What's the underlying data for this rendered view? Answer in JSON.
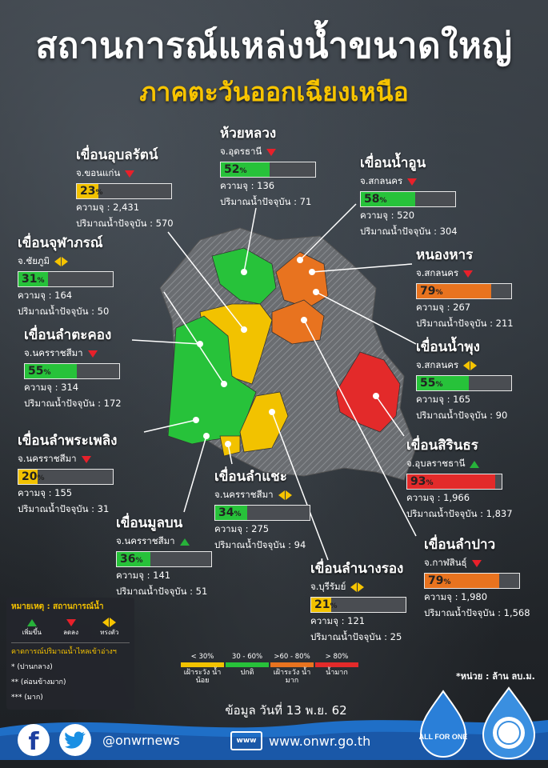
{
  "title": "สถานการณ์แหล่งน้ำขนาดใหญ่",
  "subtitle": "ภาคตะวันออกเฉียงเหนือ",
  "labels": {
    "capacity": "ความจุ :",
    "current": "ปริมาณน้ำปัจจุบัน :"
  },
  "colors": {
    "yellow": "#f2c200",
    "green": "#27c23a",
    "orange": "#e8731f",
    "red": "#e32a2a",
    "gray": "#6a6d71"
  },
  "dams": [
    {
      "name": "เขื่อนอุบลรัตน์",
      "province": "จ.ขอนแก่น",
      "trend": "down",
      "percent": "23",
      "fill": 23,
      "level": "yellow",
      "capacity": "2,431",
      "current": "570"
    },
    {
      "name": "ห้วยหลวง",
      "province": "จ.อุดรธานี",
      "trend": "down",
      "percent": "52",
      "fill": 52,
      "level": "green",
      "capacity": "136",
      "current": "71"
    },
    {
      "name": "เขื่อนน้ำอูน",
      "province": "จ.สกลนคร",
      "trend": "down",
      "percent": "58",
      "fill": 58,
      "level": "green",
      "capacity": "520",
      "current": "304"
    },
    {
      "name": "เขื่อนจุฬาภรณ์",
      "province": "จ.ชัยภูมิ",
      "trend": "both",
      "percent": "31",
      "fill": 31,
      "level": "green",
      "capacity": "164",
      "current": "50"
    },
    {
      "name": "หนองหาร",
      "province": "จ.สกลนคร",
      "trend": "down",
      "percent": "79",
      "fill": 79,
      "level": "orange",
      "capacity": "267",
      "current": "211"
    },
    {
      "name": "เขื่อนลำตะคอง",
      "province": "จ.นครราชสีมา",
      "trend": "down",
      "percent": "55",
      "fill": 55,
      "level": "green",
      "capacity": "314",
      "current": "172"
    },
    {
      "name": "เขื่อนน้ำพุง",
      "province": "จ.สกลนคร",
      "trend": "both",
      "percent": "55",
      "fill": 55,
      "level": "green",
      "capacity": "165",
      "current": "90"
    },
    {
      "name": "เขื่อนลำพระเพลิง",
      "province": "จ.นครราชสีมา",
      "trend": "down",
      "percent": "20",
      "fill": 20,
      "level": "yellow",
      "capacity": "155",
      "current": "31"
    },
    {
      "name": "เขื่อนสิรินธร",
      "province": "จ.อุบลราชธานี",
      "trend": "up",
      "percent": "93",
      "fill": 93,
      "level": "red",
      "capacity": "1,966",
      "current": "1,837"
    },
    {
      "name": "เขื่อนลำแชะ",
      "province": "จ.นครราชสีมา",
      "trend": "both",
      "percent": "34",
      "fill": 34,
      "level": "green",
      "capacity": "275",
      "current": "94"
    },
    {
      "name": "เขื่อนมูลบน",
      "province": "จ.นครราชสีมา",
      "trend": "up",
      "percent": "36",
      "fill": 36,
      "level": "green",
      "capacity": "141",
      "current": "51"
    },
    {
      "name": "เขื่อนลำปาว",
      "province": "จ.กาฬสินธุ์",
      "trend": "down",
      "percent": "79",
      "fill": 79,
      "level": "orange",
      "capacity": "1,980",
      "current": "1,568"
    },
    {
      "name": "เขื่อนลำนางรอง",
      "province": "จ.บุรีรัมย์",
      "trend": "both",
      "percent": "21",
      "fill": 21,
      "level": "yellow",
      "capacity": "121",
      "current": "25"
    }
  ],
  "legend": {
    "title": "หมายเหตุ : สถานการณ์น้ำ",
    "up": "เพิ่มขึ้น",
    "down": "ลดลง",
    "stable": "ทรงตัว",
    "forecast_title": "คาดการณ์ปริมาณน้ำไหลเข้าอ่างฯ",
    "star1": "* (ปานกลาง)",
    "star2": "** (ค่อนข้างมาก)",
    "star3": "*** (มาก)"
  },
  "scale": [
    {
      "range": "< 30%",
      "label": "เฝ้าระวัง น้ำน้อย",
      "color": "#f2c200"
    },
    {
      "range": "30 - 60%",
      "label": "ปกติ",
      "color": "#27c23a"
    },
    {
      "range": ">60 - 80%",
      "label": "เฝ้าระวัง น้ำมาก",
      "color": "#e8731f"
    },
    {
      "range": "> 80%",
      "label": "น้ำมาก",
      "color": "#e32a2a"
    }
  ],
  "unit_note": "*หน่วย : ล้าน ลบ.ม.",
  "date": "ข้อมูล วันที่ 13 พ.ย. 62",
  "footer": {
    "social_handle": "@onwrnews",
    "www_badge": "www",
    "website": "www.onwr.go.th",
    "logo1_text": "ALL FOR ONE"
  }
}
